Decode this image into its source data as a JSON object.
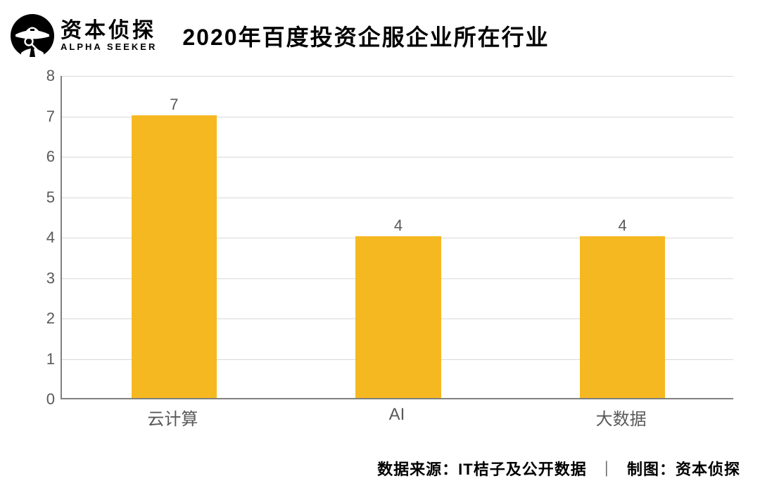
{
  "brand": {
    "name_cn": "资本侦探",
    "name_en": "ALPHA SEEKER",
    "logo_bg": "#000000",
    "logo_fg": "#ffffff"
  },
  "chart": {
    "type": "bar",
    "title": "2020年百度投资企服企业所在行业",
    "title_fontsize": 32,
    "title_color": "#000000",
    "background_color": "#ffffff",
    "axis_line_color": "#808080",
    "grid_color": "#d9d9d9",
    "grid_width": 1,
    "label_fontsize": 22,
    "label_color": "#595959",
    "xlabel_fontsize": 24,
    "bar_width_ratio": 0.38,
    "yaxis": {
      "min": 0,
      "max": 8,
      "tick_step": 1,
      "ticks": [
        0,
        1,
        2,
        3,
        4,
        5,
        6,
        7,
        8
      ]
    },
    "categories": [
      "云计算",
      "AI",
      "大数据"
    ],
    "values": [
      7,
      4,
      4
    ],
    "value_labels": [
      "7",
      "4",
      "4"
    ],
    "bar_colors": [
      "#f6b821",
      "#f6b821",
      "#f6b821"
    ]
  },
  "footer": {
    "source_key": "数据来源：",
    "source_value": "IT桔子及公开数据",
    "sep": "｜",
    "credit_key": "制图：",
    "credit_value": "资本侦探"
  }
}
